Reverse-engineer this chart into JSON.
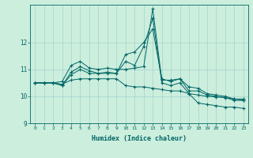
{
  "xlabel": "Humidex (Indice chaleur)",
  "background_color": "#cceedd",
  "line_color": "#006666",
  "xlim": [
    -0.5,
    23.5
  ],
  "ylim": [
    9.0,
    13.4
  ],
  "yticks": [
    9,
    10,
    11,
    12
  ],
  "xticks": [
    0,
    1,
    2,
    3,
    4,
    5,
    6,
    7,
    8,
    9,
    10,
    11,
    12,
    13,
    14,
    15,
    16,
    17,
    18,
    19,
    20,
    21,
    22,
    23
  ],
  "series": [
    [
      10.5,
      10.5,
      10.5,
      10.4,
      10.8,
      11.0,
      10.85,
      10.85,
      10.85,
      10.85,
      11.55,
      11.65,
      12.0,
      12.5,
      10.65,
      10.55,
      10.65,
      10.35,
      10.3,
      10.1,
      10.05,
      10.0,
      9.9,
      9.9
    ],
    [
      10.5,
      10.5,
      10.5,
      10.55,
      11.15,
      11.3,
      11.05,
      11.0,
      11.05,
      11.0,
      11.0,
      11.05,
      11.1,
      13.25,
      10.6,
      10.6,
      10.65,
      10.2,
      10.2,
      10.05,
      10.0,
      9.95,
      9.85,
      9.85
    ],
    [
      10.5,
      10.5,
      10.5,
      10.4,
      10.9,
      11.1,
      10.95,
      10.85,
      10.9,
      10.85,
      11.3,
      11.15,
      11.85,
      12.9,
      10.5,
      10.4,
      10.5,
      10.1,
      9.75,
      9.7,
      9.65,
      9.6,
      9.6,
      9.55
    ],
    [
      10.5,
      10.5,
      10.5,
      10.45,
      10.6,
      10.65,
      10.65,
      10.65,
      10.65,
      10.65,
      10.4,
      10.35,
      10.35,
      10.3,
      10.25,
      10.2,
      10.2,
      10.1,
      10.05,
      10.0,
      9.98,
      9.95,
      9.9,
      9.85
    ]
  ]
}
